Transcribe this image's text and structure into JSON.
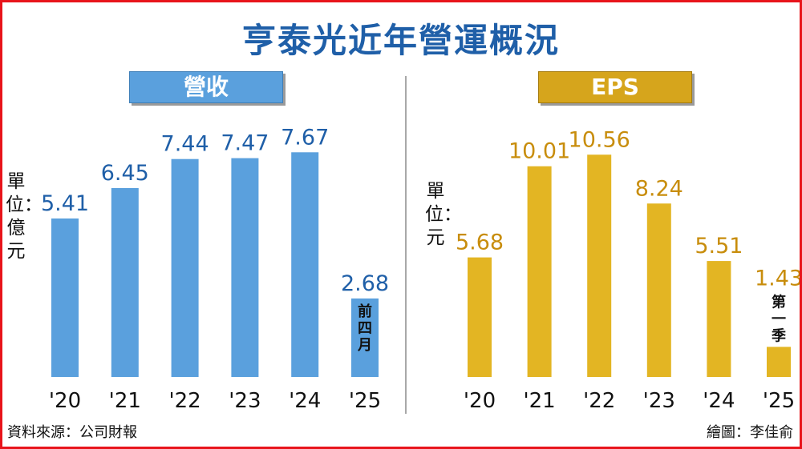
{
  "title": "亨泰光近年營運概況",
  "source": "資料來源：公司財報",
  "credit": "繪圖：李佳俞",
  "chart_data": [
    {
      "type": "bar",
      "title": "營收",
      "unit": "單位：億元",
      "categories": [
        "'20",
        "'21",
        "'22",
        "'23",
        "'24",
        "'25"
      ],
      "values": [
        5.41,
        6.45,
        7.44,
        7.47,
        7.67,
        2.68
      ],
      "value_labels": [
        "5.41",
        "6.45",
        "7.44",
        "7.47",
        "7.67",
        "2.68"
      ],
      "notes": [
        "",
        "",
        "",
        "",
        "",
        "前四月"
      ],
      "color": "#5aa0dd",
      "label_color": "#1f5fa8",
      "grid": false
    },
    {
      "type": "bar",
      "title": "EPS",
      "unit": "單位：元",
      "categories": [
        "'20",
        "'21",
        "'22",
        "'23",
        "'24",
        "'25"
      ],
      "values": [
        5.68,
        10.01,
        10.56,
        8.24,
        5.51,
        1.43
      ],
      "value_labels": [
        "5.68",
        "10.01",
        "10.56",
        "8.24",
        "5.51",
        "1.43"
      ],
      "notes": [
        "",
        "",
        "",
        "",
        "",
        "第一季"
      ],
      "color": "#e3b523",
      "label_color": "#c88d0c",
      "grid": false
    }
  ]
}
